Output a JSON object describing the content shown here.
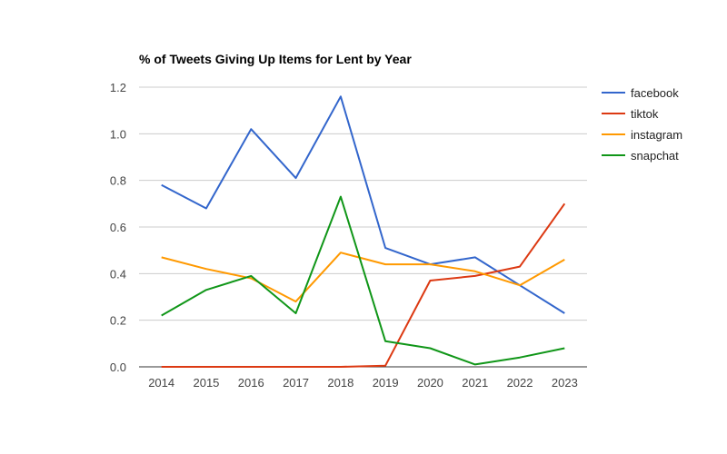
{
  "chart_data": {
    "type": "line",
    "title": "% of Tweets Giving Up Items for Lent by Year",
    "xlabel": "",
    "ylabel": "",
    "categories": [
      "2014",
      "2015",
      "2016",
      "2017",
      "2018",
      "2019",
      "2020",
      "2021",
      "2022",
      "2023"
    ],
    "ylim": [
      0,
      1.2
    ],
    "yticks": [
      "0.0",
      "0.2",
      "0.4",
      "0.6",
      "0.8",
      "1.0",
      "1.2"
    ],
    "grid": true,
    "legend_position": "right",
    "series": [
      {
        "name": "facebook",
        "color": "#3366cc",
        "values": [
          0.78,
          0.68,
          1.02,
          0.81,
          1.16,
          0.51,
          0.44,
          0.47,
          0.35,
          0.23
        ]
      },
      {
        "name": "tiktok",
        "color": "#dc3912",
        "values": [
          0.0,
          0.0,
          0.0,
          0.0,
          0.0,
          0.005,
          0.37,
          0.39,
          0.43,
          0.7
        ]
      },
      {
        "name": "instagram",
        "color": "#ff9900",
        "values": [
          0.47,
          0.42,
          0.38,
          0.28,
          0.49,
          0.44,
          0.44,
          0.41,
          0.35,
          0.46
        ]
      },
      {
        "name": "snapchat",
        "color": "#109618",
        "values": [
          0.22,
          0.33,
          0.39,
          0.23,
          0.73,
          0.11,
          0.08,
          0.01,
          0.04,
          0.08
        ]
      }
    ]
  }
}
